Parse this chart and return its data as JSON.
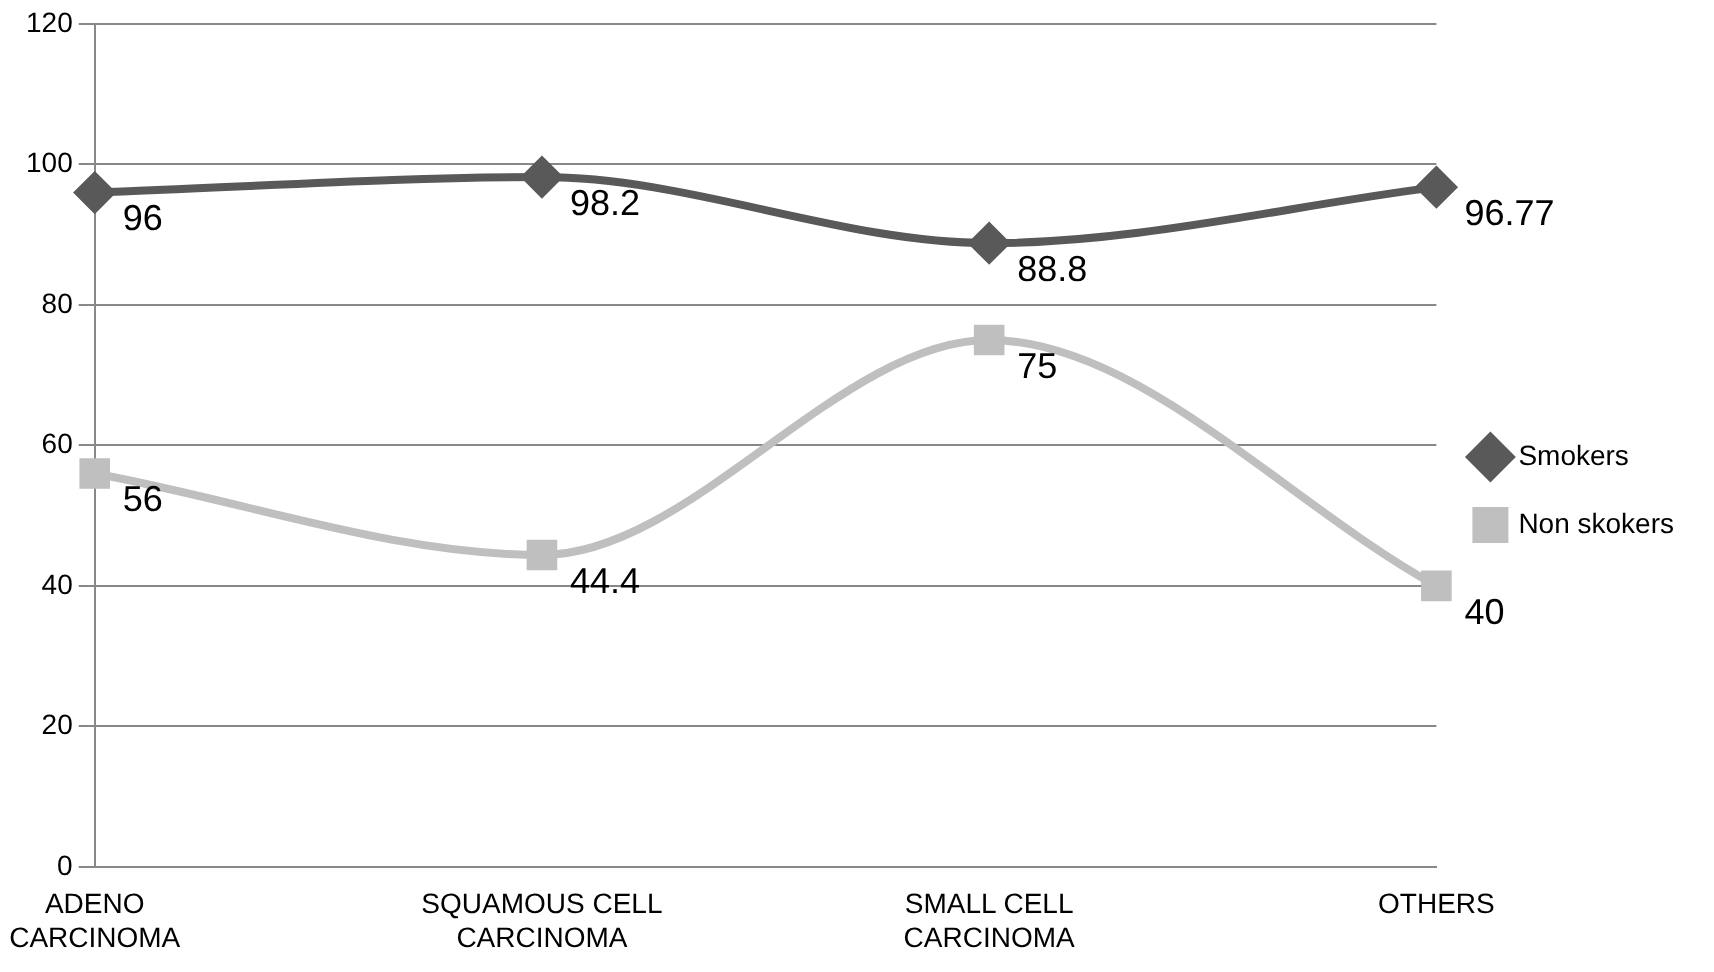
{
  "chart_data": {
    "type": "line",
    "categories": [
      "ADENO CARCINOMA",
      "SQUAMOUS CELL CARCINOMA",
      "SMALL CELL CARCINOMA",
      "OTHERS"
    ],
    "series": [
      {
        "name": "Smokers",
        "color": "#595959",
        "values": [
          96,
          98.2,
          88.8,
          96.77
        ],
        "marker": "diamond"
      },
      {
        "name": "Non skokers",
        "color": "#bfbfbf",
        "values": [
          56,
          44.4,
          75,
          40
        ],
        "marker": "square"
      }
    ],
    "ylim": [
      0,
      120
    ],
    "yticks": [
      0,
      20,
      40,
      60,
      80,
      100,
      120
    ],
    "grid": "y",
    "legend": "right",
    "data_labels": true
  }
}
